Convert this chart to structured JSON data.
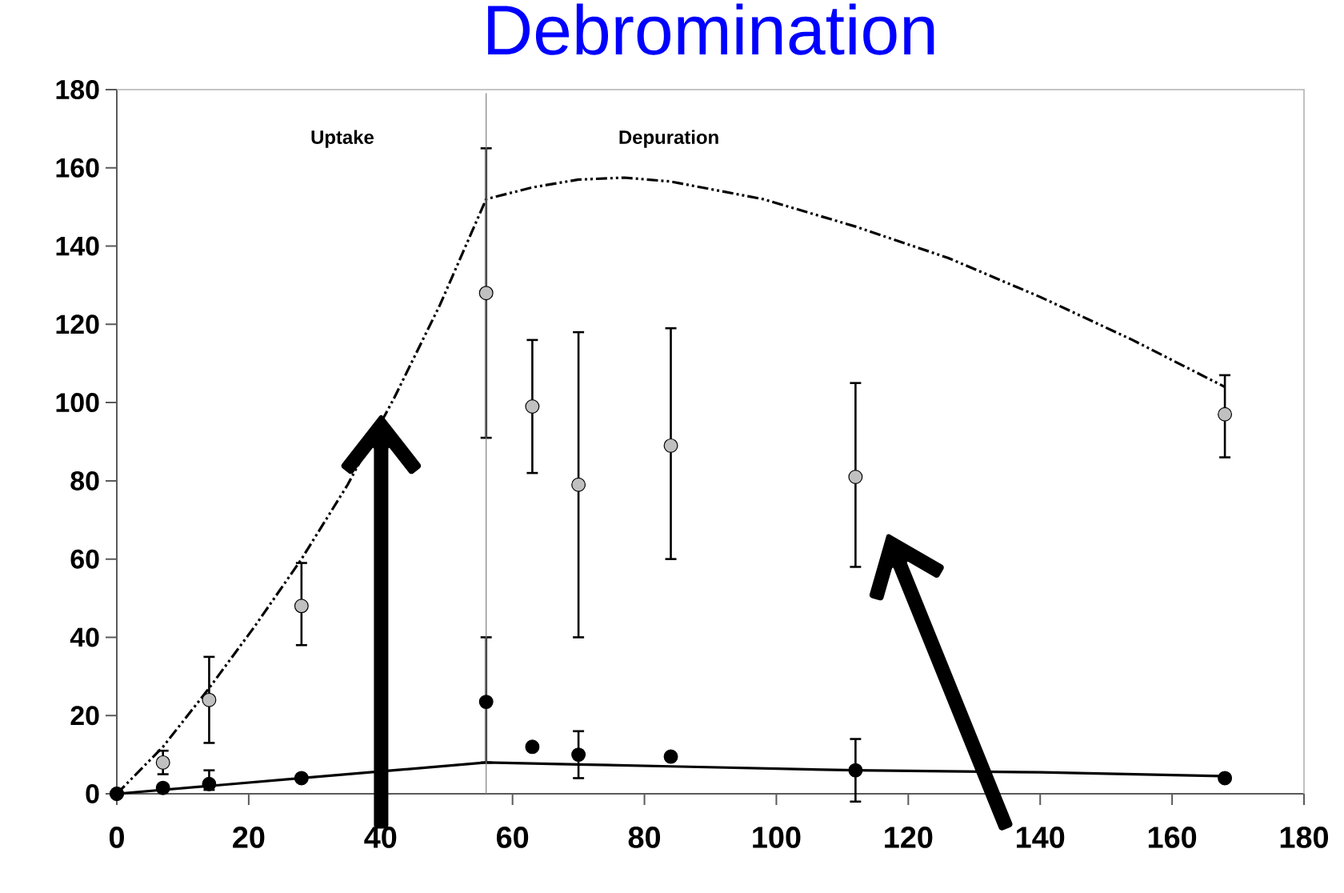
{
  "chart_data": {
    "type": "scatter",
    "title": "Debromination",
    "xlim": [
      0,
      180
    ],
    "xticks": [
      0,
      20,
      40,
      60,
      80,
      100,
      120,
      140,
      160,
      180
    ],
    "ylim": [
      0,
      180
    ],
    "yticks": [
      0,
      20,
      40,
      60,
      80,
      100,
      120,
      140,
      160,
      180
    ],
    "annotations": [
      "Uptake",
      "Depuration"
    ],
    "ref_lines": [
      {
        "axis": "x",
        "value": 56,
        "color": "#808080"
      }
    ],
    "series": [
      {
        "type": "line",
        "color": "#000000",
        "line_style": "dashed",
        "marker": "none",
        "x": [
          0,
          7,
          14,
          21,
          28,
          35,
          42,
          49,
          56,
          63,
          70,
          77,
          84,
          98,
          112,
          126,
          140,
          154,
          168
        ],
        "values": [
          0,
          12,
          27,
          43,
          60,
          79,
          101,
          125,
          152,
          155,
          157,
          157.5,
          156.5,
          152,
          145,
          137,
          127,
          116,
          104
        ]
      },
      {
        "type": "line",
        "color": "#000000",
        "line_style": "solid",
        "marker": "none",
        "x": [
          0,
          14,
          28,
          42,
          56,
          70,
          84,
          112,
          140,
          168
        ],
        "values": [
          0,
          2,
          4,
          6,
          8,
          7.5,
          7,
          6,
          5.5,
          4.5
        ]
      },
      {
        "color": "#c0c0c0",
        "marker": "circle",
        "x": [
          0,
          7,
          14,
          28,
          56,
          63,
          70,
          84,
          112,
          168
        ],
        "values": [
          0,
          8,
          24,
          48,
          128,
          99,
          79,
          89,
          81,
          97
        ],
        "errors": [
          null,
          [
            5,
            11
          ],
          [
            13,
            35
          ],
          [
            38,
            59
          ],
          [
            91,
            165
          ],
          [
            82,
            116
          ],
          [
            40,
            118
          ],
          [
            60,
            119
          ],
          [
            58,
            105
          ],
          [
            86,
            107
          ]
        ]
      },
      {
        "color": "#000000",
        "marker": "circle",
        "x": [
          0,
          7,
          14,
          28,
          56,
          63,
          70,
          84,
          112,
          168
        ],
        "values": [
          0,
          1.5,
          2.5,
          4,
          23.5,
          12,
          10,
          9.5,
          6,
          4
        ],
        "errors": [
          null,
          null,
          [
            1,
            6
          ],
          null,
          [
            8,
            40
          ],
          null,
          [
            4,
            16
          ],
          null,
          [
            -2,
            14
          ],
          null
        ]
      }
    ]
  }
}
